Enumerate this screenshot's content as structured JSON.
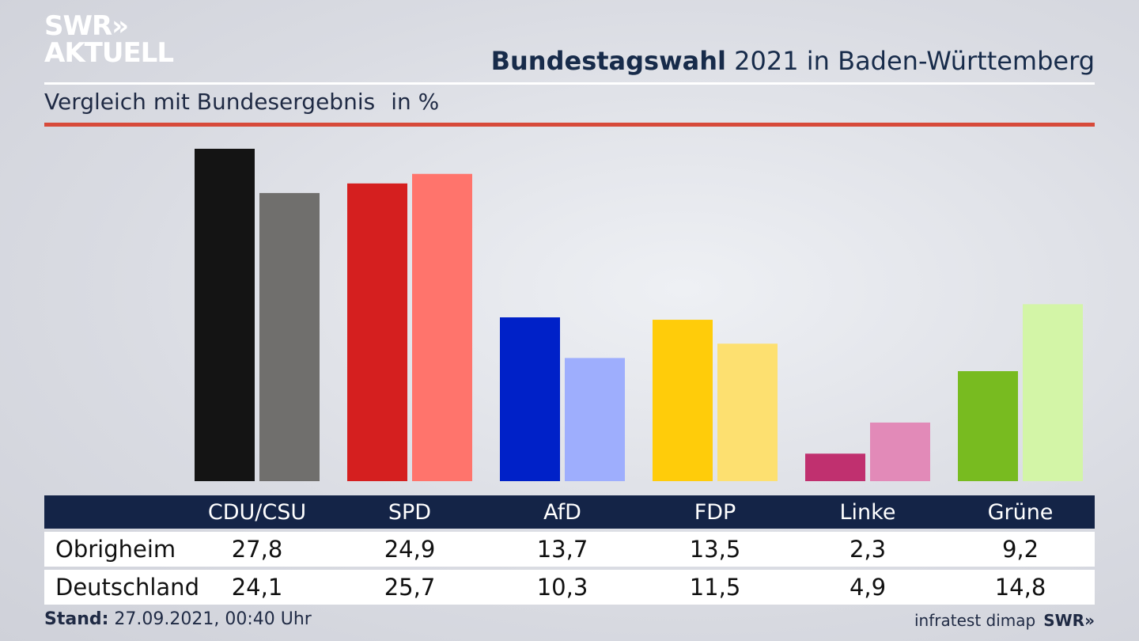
{
  "branding": {
    "logo_line1": "SWR»",
    "logo_line2": "AKTUELL",
    "footer_logo": "SWR»",
    "source": "infratest dimap"
  },
  "header": {
    "title_bold": "Bundestagswahl",
    "title_rest": " 2021 in Baden-Württemberg",
    "subtitle": "Vergleich mit Bundesergebnis",
    "unit": "in %"
  },
  "footer": {
    "stand_label": "Stand:",
    "stand_value": " 27.09.2021, 00:40 Uhr"
  },
  "chart_data": {
    "type": "bar",
    "categories": [
      "CDU/CSU",
      "SPD",
      "AfD",
      "FDP",
      "Linke",
      "Grüne"
    ],
    "series": [
      {
        "name": "Obrigheim",
        "values": [
          27.8,
          24.9,
          13.7,
          13.5,
          2.3,
          9.2
        ]
      },
      {
        "name": "Deutschland",
        "values": [
          24.1,
          25.7,
          10.3,
          11.5,
          4.9,
          14.8
        ]
      }
    ],
    "colors": {
      "Obrigheim": [
        "#141414",
        "#d51f1f",
        "#0021c8",
        "#ffcc0a",
        "#c0306f",
        "#78bb20"
      ],
      "Deutschland": [
        "#706f6d",
        "#ff746c",
        "#9eaefd",
        "#fde070",
        "#e28ab8",
        "#d3f5a7"
      ]
    },
    "ylim": [
      0,
      27.8
    ]
  }
}
